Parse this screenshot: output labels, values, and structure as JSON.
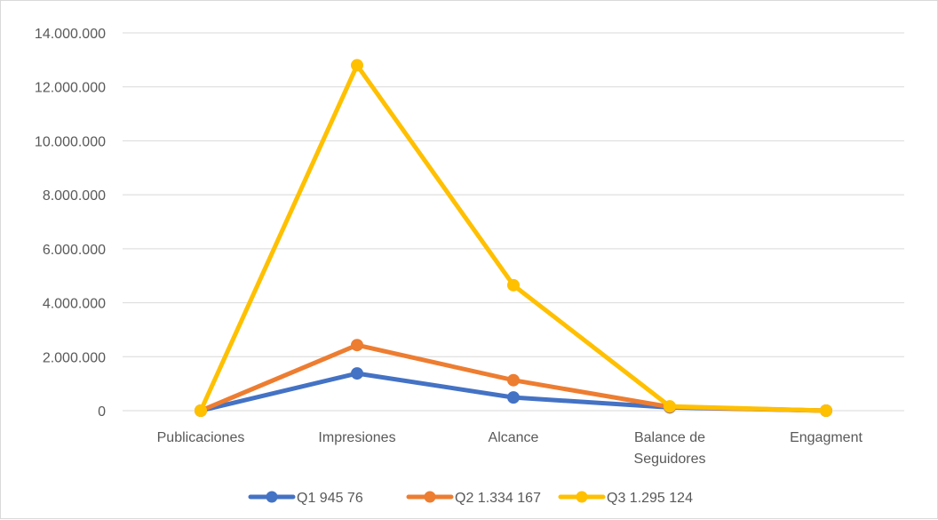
{
  "chart_data": {
    "type": "line",
    "categories": [
      "Publicaciones",
      "Impresiones",
      "Alcance",
      "Balance de Seguidores",
      "Engagment"
    ],
    "ylim": [
      0,
      14000000
    ],
    "yticks": [
      0,
      2000000,
      4000000,
      6000000,
      8000000,
      10000000,
      12000000,
      14000000
    ],
    "ytick_labels": [
      "0",
      "2.000.000",
      "4.000.000",
      "6.000.000",
      "8.000.000",
      "10.000.000",
      "12.000.000",
      "14.000.000"
    ],
    "grid": true,
    "legend_position": "bottom",
    "series": [
      {
        "name": "Q1 945 76",
        "color": "#4472c4",
        "values": [
          60,
          1380000,
          490000,
          120000,
          10
        ]
      },
      {
        "name": "Q2 1.334 167",
        "color": "#ed7d31",
        "values": [
          80,
          2430000,
          1130000,
          140000,
          10
        ]
      },
      {
        "name": "Q3  1.295 124",
        "color": "#ffc000",
        "values": [
          100,
          12800000,
          4650000,
          160000,
          10
        ]
      }
    ]
  }
}
